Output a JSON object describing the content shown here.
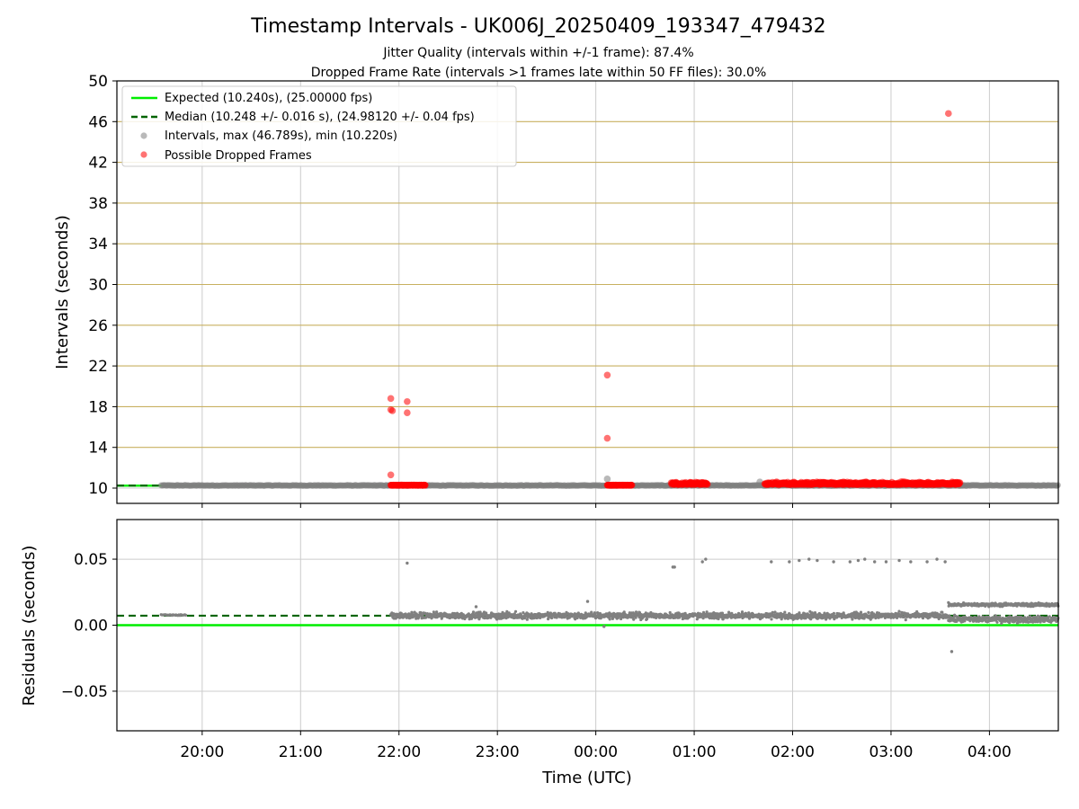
{
  "figure": {
    "title": "Timestamp Intervals - UK006J_20250409_193347_479432",
    "subtitle_1": "Jitter Quality (intervals within +/-1 frame): 87.4%",
    "subtitle_2": "Dropped Frame Rate (intervals >1 frames late within 50 FF files): 30.0%"
  },
  "colors": {
    "expected": "#00ee00",
    "median": "#006400",
    "intervals": "#808080",
    "dropped": "#ff0000",
    "hgrid_top": "#c8b060",
    "grid": "#cccccc"
  },
  "chart_data": [
    {
      "type": "scatter",
      "ylabel": "Intervals (seconds)",
      "xlim": [
        "19:08",
        "04:42"
      ],
      "ylim": [
        8.5,
        50
      ],
      "yticks": [
        10,
        14,
        18,
        22,
        26,
        30,
        34,
        38,
        42,
        46,
        50
      ],
      "grid": true,
      "legend_position": "top-left",
      "legend": [
        "Expected (10.240s), (25.00000 fps)",
        "Median (10.248 +/- 0.016 s), (24.98120 +/- 0.04 fps)",
        "Intervals, max (46.789s), min (10.220s)",
        "Possible Dropped Frames"
      ],
      "expected_value": 10.24,
      "median_value": 10.248,
      "series": [
        {
          "name": "Intervals, max (46.789s), min (10.220s)",
          "band": {
            "x_start": "19:35",
            "x_end": "04:42",
            "y_min": 10.22,
            "y_max": 10.3
          },
          "points": [
            {
              "x": "00:07",
              "y": 10.9
            },
            {
              "x": "01:40",
              "y": 10.6
            }
          ]
        },
        {
          "name": "Possible Dropped Frames",
          "points": [
            {
              "x": "21:55",
              "y": 18.8
            },
            {
              "x": "21:55",
              "y": 17.7
            },
            {
              "x": "21:56",
              "y": 17.6
            },
            {
              "x": "21:55",
              "y": 11.3
            },
            {
              "x": "22:05",
              "y": 18.5
            },
            {
              "x": "22:05",
              "y": 17.4
            },
            {
              "x": "00:07",
              "y": 21.1
            },
            {
              "x": "00:07",
              "y": 14.9
            },
            {
              "x": "03:35",
              "y": 46.8
            }
          ],
          "clusters": [
            {
              "x_start": "21:55",
              "x_end": "22:16",
              "y": 10.28,
              "spread": 0.02
            },
            {
              "x_start": "00:07",
              "x_end": "00:22",
              "y": 10.28,
              "spread": 0.02
            },
            {
              "x_start": "00:46",
              "x_end": "01:08",
              "y": 10.35,
              "spread": 0.3
            },
            {
              "x_start": "01:43",
              "x_end": "03:42",
              "y": 10.35,
              "spread": 0.35
            }
          ]
        }
      ]
    },
    {
      "type": "scatter",
      "xlabel": "Time (UTC)",
      "ylabel": "Residuals (seconds)",
      "xlim": [
        "19:08",
        "04:42"
      ],
      "ylim": [
        -0.08,
        0.08
      ],
      "yticks": [
        0.05,
        0.0,
        -0.05
      ],
      "ytick_labels": [
        "0.05",
        "0.00",
        "−0.05"
      ],
      "xticks": [
        "20:00",
        "21:00",
        "22:00",
        "23:00",
        "00:00",
        "01:00",
        "02:00",
        "03:00",
        "04:00"
      ],
      "grid": true,
      "expected_value": 0.0,
      "median_value": 0.0072,
      "series": [
        {
          "name": "Residuals",
          "segments": [
            {
              "x_start": "19:35",
              "x_end": "19:50",
              "center": 0.0078,
              "spread": 0.0008
            },
            {
              "x_start": "21:55",
              "x_end": "03:35",
              "center": 0.0072,
              "spread": 0.0035
            },
            {
              "x_start": "03:35",
              "x_end": "04:42",
              "center": 0.0045,
              "spread": 0.0035
            },
            {
              "x_start": "03:35",
              "x_end": "04:42",
              "center": 0.0155,
              "spread": 0.0018
            }
          ],
          "outliers": [
            {
              "x": "22:05",
              "y": 0.047
            },
            {
              "x": "00:47",
              "y": 0.044
            },
            {
              "x": "00:48",
              "y": 0.044
            },
            {
              "x": "01:05",
              "y": 0.048
            },
            {
              "x": "01:07",
              "y": 0.05
            },
            {
              "x": "01:47",
              "y": 0.048
            },
            {
              "x": "01:58",
              "y": 0.048
            },
            {
              "x": "02:04",
              "y": 0.049
            },
            {
              "x": "02:10",
              "y": 0.05
            },
            {
              "x": "02:15",
              "y": 0.049
            },
            {
              "x": "02:25",
              "y": 0.048
            },
            {
              "x": "02:35",
              "y": 0.048
            },
            {
              "x": "02:40",
              "y": 0.049
            },
            {
              "x": "02:44",
              "y": 0.05
            },
            {
              "x": "02:50",
              "y": 0.048
            },
            {
              "x": "02:57",
              "y": 0.048
            },
            {
              "x": "03:05",
              "y": 0.049
            },
            {
              "x": "03:12",
              "y": 0.048
            },
            {
              "x": "03:22",
              "y": 0.048
            },
            {
              "x": "03:28",
              "y": 0.05
            },
            {
              "x": "03:33",
              "y": 0.048
            },
            {
              "x": "23:55",
              "y": 0.018
            },
            {
              "x": "22:47",
              "y": 0.014
            },
            {
              "x": "00:05",
              "y": -0.001
            },
            {
              "x": "03:37",
              "y": -0.02
            }
          ]
        }
      ]
    }
  ]
}
